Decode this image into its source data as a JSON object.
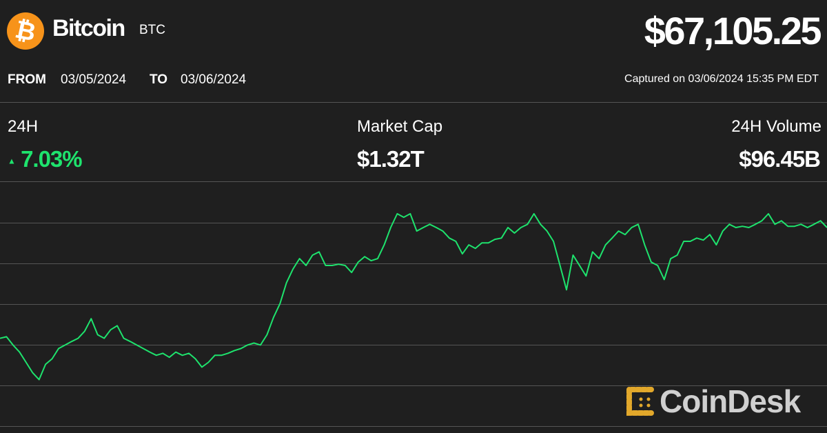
{
  "header": {
    "coin_icon": "bitcoin-icon",
    "coin_icon_glyph": "₿",
    "coin_color": "#f7931a",
    "name": "Bitcoin",
    "ticker": "BTC",
    "price": "$67,105.25",
    "from_label": "FROM",
    "from_date": "03/05/2024",
    "to_label": "TO",
    "to_date": "03/06/2024",
    "captured": "Captured on 03/06/2024 15:35 PM EDT"
  },
  "stats": {
    "change_label": "24H",
    "change_arrow": "▲",
    "change_value": "7.03%",
    "change_color": "#1ee36d",
    "market_cap_label": "Market Cap",
    "market_cap_value": "$1.32T",
    "volume_label": "24H Volume",
    "volume_value": "$96.45B"
  },
  "brand": {
    "logo_text": "CoinDesk",
    "logo_color": "#e2a82b"
  },
  "chart_data": {
    "type": "line",
    "title": "",
    "xlabel": "",
    "ylabel": "",
    "x_range": [
      "03/05/2024",
      "03/06/2024"
    ],
    "ylim": [
      59200,
      68950
    ],
    "grid": true,
    "line_color": "#1ee36d",
    "values": [
      62700,
      62760,
      62430,
      62150,
      61740,
      61330,
      61050,
      61660,
      61880,
      62290,
      62430,
      62570,
      62700,
      62980,
      63480,
      62840,
      62700,
      63040,
      63200,
      62700,
      62570,
      62430,
      62290,
      62150,
      62020,
      62100,
      61940,
      62150,
      62020,
      62100,
      61880,
      61550,
      61740,
      62020,
      62020,
      62100,
      62210,
      62290,
      62430,
      62510,
      62430,
      62840,
      63530,
      64080,
      64910,
      65460,
      65870,
      65600,
      66010,
      66140,
      65600,
      65600,
      65650,
      65600,
      65320,
      65730,
      65950,
      65790,
      65870,
      66420,
      67110,
      67660,
      67520,
      67660,
      66970,
      67110,
      67240,
      67110,
      66970,
      66690,
      66560,
      66060,
      66420,
      66280,
      66500,
      66500,
      66640,
      66690,
      67110,
      66890,
      67110,
      67240,
      67660,
      67240,
      66970,
      66560,
      65600,
      64630,
      66010,
      65600,
      65180,
      66140,
      65870,
      66420,
      66690,
      66970,
      66830,
      67110,
      67240,
      66420,
      65730,
      65600,
      65040,
      65870,
      66010,
      66560,
      66560,
      66690,
      66610,
      66830,
      66420,
      66970,
      67240,
      67110,
      67160,
      67110,
      67240,
      67380,
      67660,
      67240,
      67380,
      67160,
      67160,
      67240,
      67110,
      67240,
      67380,
      67110
    ]
  }
}
